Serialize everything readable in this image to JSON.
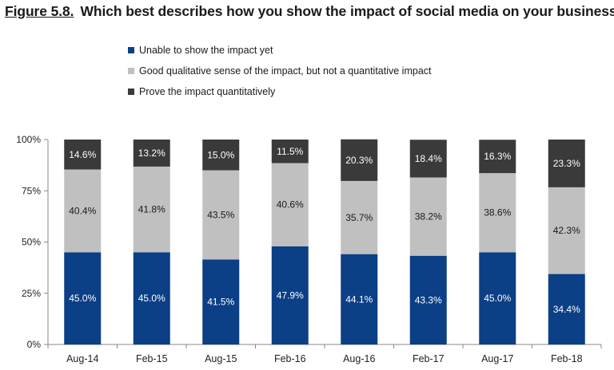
{
  "title": {
    "figure_label": "Figure 5.8.",
    "text": "Which best describes how you show the impact of social media on your business?"
  },
  "chart_data": {
    "type": "bar",
    "stacked": true,
    "categories": [
      "Aug-14",
      "Feb-15",
      "Aug-15",
      "Feb-16",
      "Aug-16",
      "Feb-17",
      "Aug-17",
      "Feb-18"
    ],
    "series": [
      {
        "name": "Unable to show the impact yet",
        "color": "#0b3f86",
        "values": [
          45.0,
          45.0,
          41.5,
          47.9,
          44.1,
          43.3,
          45.0,
          34.4
        ],
        "labels": [
          "45.0%",
          "45.0%",
          "41.5%",
          "47.9%",
          "44.1%",
          "43.3%",
          "45.0%",
          "34.4%"
        ]
      },
      {
        "name": "Good qualitative sense of the impact, but not a quantitative impact",
        "color": "#c0c0c0",
        "values": [
          40.4,
          41.8,
          43.5,
          40.6,
          35.7,
          38.2,
          38.6,
          42.3
        ],
        "labels": [
          "40.4%",
          "41.8%",
          "43.5%",
          "40.6%",
          "35.7%",
          "38.2%",
          "38.6%",
          "42.3%"
        ]
      },
      {
        "name": "Prove the impact quantitatively",
        "color": "#3a3a3a",
        "values": [
          14.6,
          13.2,
          15.0,
          11.5,
          20.3,
          18.4,
          16.3,
          23.3
        ],
        "labels": [
          "14.6%",
          "13.2%",
          "15.0%",
          "11.5%",
          "20.3%",
          "18.4%",
          "16.3%",
          "23.3%"
        ]
      }
    ],
    "yticks": [
      "0%",
      "25%",
      "50%",
      "75%",
      "100%"
    ],
    "ylim": [
      0,
      100
    ],
    "legend_position": "top-left",
    "grid": false
  }
}
